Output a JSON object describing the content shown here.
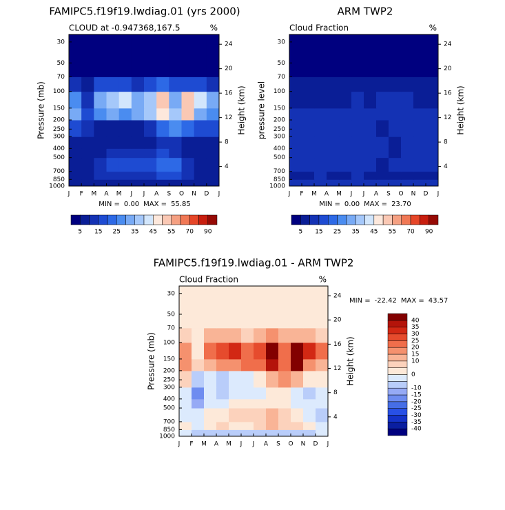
{
  "chart_data": [
    {
      "type": "heatmap",
      "title": "FAMIPC5.f19f19.lwdiag.01 (yrs 2000)",
      "subtitle": "CLOUD at -0.947368,167.5",
      "units": "%",
      "ylabel": "Pressure (mb)",
      "y2label": "Height (km)",
      "categories": [
        "J",
        "F",
        "M",
        "A",
        "M",
        "J",
        "J",
        "A",
        "S",
        "O",
        "N",
        "D",
        "J"
      ],
      "ylim": [
        1000,
        25
      ],
      "log_y": true,
      "yticks": [
        30,
        50,
        70,
        100,
        150,
        200,
        250,
        300,
        400,
        500,
        700,
        850,
        1000
      ],
      "y2lim": [
        0.8,
        25.6
      ],
      "y2ticks": [
        4,
        8,
        12,
        16,
        20,
        24
      ],
      "y_bins": [
        1000,
        850,
        700,
        500,
        400,
        300,
        200,
        150,
        100,
        70,
        25
      ],
      "values": [
        [
          8,
          6,
          6,
          5,
          5,
          5,
          5,
          5,
          5,
          5,
          6,
          8
        ],
        [
          6,
          5,
          10,
          12,
          10,
          10,
          12,
          15,
          15,
          10,
          8,
          6
        ],
        [
          5,
          5,
          12,
          15,
          15,
          15,
          18,
          20,
          20,
          12,
          8,
          5
        ],
        [
          5,
          5,
          8,
          10,
          10,
          10,
          12,
          15,
          12,
          8,
          5,
          5
        ],
        [
          8,
          5,
          5,
          5,
          5,
          5,
          8,
          10,
          12,
          8,
          5,
          8
        ],
        [
          15,
          12,
          8,
          5,
          5,
          8,
          12,
          20,
          25,
          20,
          15,
          15
        ],
        [
          30,
          15,
          25,
          30,
          25,
          30,
          35,
          48,
          35,
          50,
          30,
          25
        ],
        [
          25,
          12,
          30,
          35,
          40,
          32,
          35,
          50,
          30,
          52,
          40,
          30
        ],
        [
          12,
          8,
          15,
          15,
          15,
          12,
          15,
          20,
          15,
          15,
          15,
          12
        ],
        [
          3,
          3,
          3,
          3,
          3,
          3,
          3,
          3,
          3,
          3,
          3,
          3
        ]
      ],
      "min_label": "MIN =",
      "min": {
        "value": 0,
        "label": "0.00"
      },
      "max_label": "MAX =",
      "max": 55.85,
      "colorbar": {
        "orientation": "horizontal",
        "colors": [
          "#00007f",
          "#0a1e96",
          "#1432b4",
          "#1e4bd2",
          "#2d69e6",
          "#4a8cf0",
          "#78aaf5",
          "#a5c8fa",
          "#d2e6fc",
          "#fde8dc",
          "#fac8b4",
          "#f5a082",
          "#f07855",
          "#e64628",
          "#c81e0f",
          "#960a05"
        ],
        "levels": [
          5,
          10,
          15,
          20,
          25,
          30,
          35,
          40,
          45,
          50,
          55,
          60,
          70,
          80,
          90
        ],
        "labels": [
          5,
          15,
          25,
          35,
          45,
          55,
          70,
          90
        ]
      }
    },
    {
      "type": "heatmap",
      "title": "ARM TWP2",
      "subtitle": "Cloud Fraction",
      "units": "%",
      "ylabel": "pressure level",
      "y2label": "Height (km)",
      "categories": [
        "J",
        "F",
        "M",
        "A",
        "M",
        "J",
        "J",
        "A",
        "S",
        "O",
        "N",
        "D",
        "J"
      ],
      "ylim": [
        1000,
        25
      ],
      "log_y": true,
      "yticks": [
        30,
        50,
        70,
        100,
        150,
        200,
        250,
        300,
        400,
        500,
        700,
        850,
        1000
      ],
      "y2lim": [
        0.8,
        25.6
      ],
      "y2ticks": [
        4,
        8,
        12,
        16,
        20,
        24
      ],
      "y_bins": [
        1000,
        850,
        700,
        500,
        400,
        300,
        200,
        150,
        100,
        70,
        25
      ],
      "values": [
        [
          10,
          12,
          12,
          12,
          12,
          12,
          12,
          12,
          12,
          12,
          12,
          10
        ],
        [
          5,
          8,
          10,
          5,
          8,
          10,
          5,
          5,
          8,
          5,
          8,
          8
        ],
        [
          10,
          10,
          12,
          12,
          10,
          10,
          12,
          8,
          12,
          10,
          12,
          12
        ],
        [
          10,
          10,
          10,
          12,
          10,
          10,
          10,
          12,
          8,
          10,
          10,
          10
        ],
        [
          12,
          10,
          10,
          12,
          10,
          10,
          10,
          10,
          8,
          10,
          10,
          12
        ],
        [
          10,
          12,
          10,
          12,
          10,
          12,
          10,
          8,
          10,
          10,
          12,
          12
        ],
        [
          12,
          10,
          12,
          12,
          10,
          10,
          12,
          10,
          12,
          10,
          12,
          12
        ],
        [
          8,
          8,
          8,
          8,
          8,
          10,
          8,
          10,
          10,
          10,
          8,
          8
        ],
        [
          5,
          5,
          5,
          5,
          5,
          5,
          5,
          5,
          5,
          5,
          5,
          5
        ],
        [
          2,
          2,
          2,
          2,
          2,
          2,
          2,
          2,
          2,
          2,
          2,
          2
        ]
      ],
      "min_label": "MIN =",
      "min": {
        "value": 0,
        "label": "0.00"
      },
      "max_label": "MAX =",
      "max": {
        "value": 23.7,
        "label": "23.70"
      },
      "colorbar": {
        "orientation": "horizontal",
        "colors": [
          "#00007f",
          "#0a1e96",
          "#1432b4",
          "#1e4bd2",
          "#2d69e6",
          "#4a8cf0",
          "#78aaf5",
          "#a5c8fa",
          "#d2e6fc",
          "#fde8dc",
          "#fac8b4",
          "#f5a082",
          "#f07855",
          "#e64628",
          "#c81e0f",
          "#960a05"
        ],
        "levels": [
          5,
          10,
          15,
          20,
          25,
          30,
          35,
          40,
          45,
          50,
          55,
          60,
          70,
          80,
          90
        ],
        "labels": [
          5,
          15,
          25,
          35,
          45,
          55,
          70,
          90
        ]
      }
    },
    {
      "type": "heatmap",
      "title": "FAMIPC5.f19f19.lwdiag.01 - ARM TWP2",
      "subtitle": "Cloud Fraction",
      "units": "%",
      "ylabel": "Pressure (mb)",
      "y2label": "Height (km)",
      "categories": [
        "J",
        "F",
        "M",
        "A",
        "M",
        "J",
        "J",
        "A",
        "S",
        "O",
        "N",
        "D",
        "J"
      ],
      "ylim": [
        1000,
        25
      ],
      "log_y": true,
      "yticks": [
        30,
        50,
        70,
        100,
        150,
        200,
        250,
        300,
        400,
        500,
        700,
        850,
        1000
      ],
      "y2lim": [
        0.8,
        25.6
      ],
      "y2ticks": [
        4,
        8,
        12,
        16,
        20,
        24
      ],
      "y_bins": [
        1000,
        850,
        700,
        500,
        400,
        300,
        200,
        150,
        100,
        70,
        25
      ],
      "values": [
        [
          -2,
          -6,
          -6,
          -7,
          -7,
          -7,
          -7,
          -7,
          -7,
          -7,
          -6,
          -2
        ],
        [
          1,
          -3,
          0,
          7,
          2,
          0,
          7,
          10,
          7,
          5,
          0,
          -2
        ],
        [
          -5,
          -5,
          0,
          3,
          5,
          5,
          6,
          12,
          8,
          2,
          -4,
          -7
        ],
        [
          -5,
          -15,
          -2,
          -2,
          0,
          0,
          2,
          3,
          4,
          -2,
          -5,
          -5
        ],
        [
          -4,
          -20,
          -5,
          -7,
          -5,
          -5,
          -2,
          0,
          4,
          -2,
          -10,
          -4
        ],
        [
          5,
          -10,
          -2,
          -7,
          -5,
          -4,
          2,
          12,
          15,
          10,
          3,
          3
        ],
        [
          18,
          5,
          13,
          18,
          15,
          20,
          23,
          38,
          23,
          40,
          18,
          13
        ],
        [
          17,
          4,
          22,
          27,
          32,
          22,
          27,
          40,
          20,
          42,
          32,
          22
        ],
        [
          7,
          3,
          10,
          10,
          10,
          7,
          10,
          15,
          10,
          10,
          10,
          7
        ],
        [
          1,
          1,
          1,
          1,
          1,
          1,
          1,
          1,
          1,
          1,
          1,
          1
        ]
      ],
      "min_label": "MIN =",
      "min": -22.42,
      "max_label": "MAX =",
      "max": 43.57,
      "colorbar": {
        "orientation": "vertical",
        "colors": [
          "#00007f",
          "#0a1ea0",
          "#1432c8",
          "#2850e6",
          "#466ee6",
          "#6e8cf0",
          "#96aaf5",
          "#b9cdfa",
          "#dceafd",
          "#fde9d9",
          "#fcd2bc",
          "#f9b496",
          "#f5916e",
          "#f06e4b",
          "#e64b2d",
          "#d22814",
          "#b4140a",
          "#820000"
        ],
        "levels": [
          -40,
          -35,
          -30,
          -25,
          -20,
          -15,
          -10,
          -5,
          0,
          5,
          10,
          15,
          20,
          25,
          30,
          35,
          40
        ],
        "labels": [
          -40,
          -35,
          -30,
          -25,
          -20,
          -15,
          -10,
          0,
          10,
          15,
          20,
          25,
          30,
          35,
          40
        ]
      }
    }
  ]
}
